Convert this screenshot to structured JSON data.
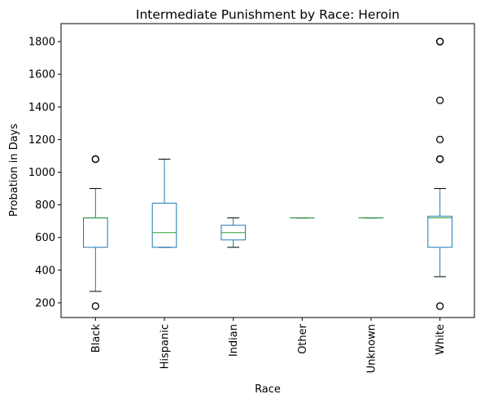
{
  "chart_data": {
    "type": "box",
    "title": "Intermediate Punishment by Race: Heroin",
    "xlabel": "Race",
    "ylabel": "Probation in Days",
    "ylim": [
      110,
      1910
    ],
    "yticks": [
      200,
      400,
      600,
      800,
      1000,
      1200,
      1400,
      1600,
      1800
    ],
    "grid": false,
    "colors": {
      "box": "#1f77b4",
      "median": "#2ca02c",
      "whisker": "#000000",
      "flier": "#000000"
    },
    "categories": [
      "Black",
      "Hispanic",
      "Indian",
      "Other",
      "Unknown",
      "White"
    ],
    "boxes": [
      {
        "category": "Black",
        "whislo": 270,
        "q1": 540,
        "med": 720,
        "q3": 720,
        "whishi": 900,
        "fliers": [
          180,
          1080,
          1080
        ]
      },
      {
        "category": "Hispanic",
        "whislo": 540,
        "q1": 540,
        "med": 630,
        "q3": 810,
        "whishi": 1080,
        "fliers": []
      },
      {
        "category": "Indian",
        "whislo": 540,
        "q1": 585,
        "med": 630,
        "q3": 675,
        "whishi": 720,
        "fliers": []
      },
      {
        "category": "Other",
        "whislo": 720,
        "q1": 720,
        "med": 720,
        "q3": 720,
        "whishi": 720,
        "fliers": []
      },
      {
        "category": "Unknown",
        "whislo": 720,
        "q1": 720,
        "med": 720,
        "q3": 720,
        "whishi": 720,
        "fliers": []
      },
      {
        "category": "White",
        "whislo": 360,
        "q1": 540,
        "med": 720,
        "q3": 730,
        "whishi": 900,
        "fliers": [
          180,
          1080,
          1080,
          1200,
          1440,
          1800,
          1800
        ]
      }
    ]
  }
}
